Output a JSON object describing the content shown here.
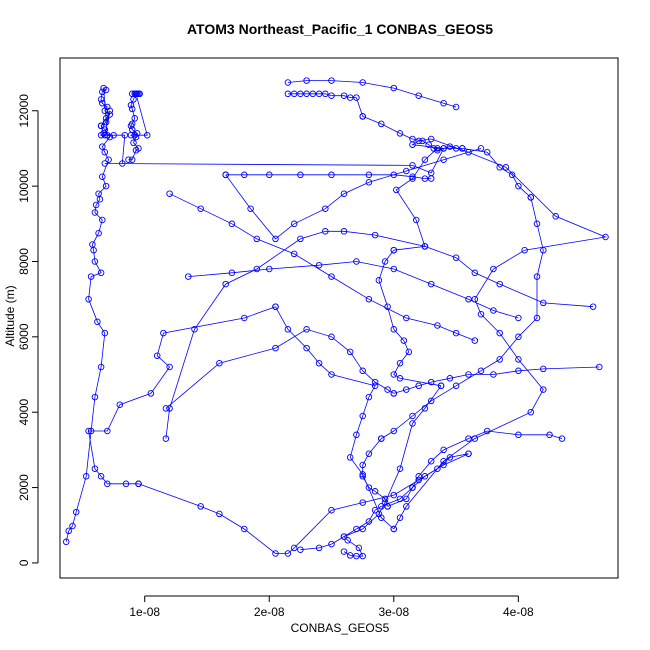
{
  "chart_data": {
    "type": "line",
    "title": "ATOM3 Northeast_Pacific_1 CONBAS_GEOS5",
    "xlabel": "CONBAS_GEOS5",
    "ylabel": "Altitude (m)",
    "xlim": [
      3.2e-09,
      4.8e-08
    ],
    "ylim": [
      -400,
      13400
    ],
    "x_ticks": [
      1e-08,
      2e-08,
      3e-08,
      4e-08
    ],
    "x_tick_labels": [
      "1e-08",
      "2e-08",
      "3e-08",
      "4e-08"
    ],
    "y_ticks": [
      0,
      2000,
      4000,
      6000,
      8000,
      10000,
      12000
    ],
    "y_tick_labels": [
      "0",
      "2000",
      "4000",
      "6000",
      "8000",
      "10000",
      "12000"
    ],
    "line_color": "#0000ff",
    "marker": "open-circle",
    "grid": false,
    "legend": "none",
    "series": [
      {
        "x": [
          3.7e-09,
          3.9e-09,
          4.2e-09,
          4.5e-09,
          5.3e-09,
          5.7e-09,
          6e-09,
          6.5e-09,
          6.8e-09,
          6.2e-09,
          5.5e-09,
          5.7e-09,
          6.5e-09,
          6e-09,
          5.9e-09,
          5.8e-09,
          6.3e-09,
          6.6e-09,
          6e-09,
          6.1e-09,
          6.4e-09,
          6.3e-09,
          6.9e-09,
          6.6e-09,
          7.1e-09,
          6.8e-09,
          6.6e-09,
          7.2e-09,
          6.8e-09,
          6.5e-09,
          6.9e-09,
          7.2e-09,
          6.8e-09,
          7e-09,
          6.6e-09,
          6.5e-09,
          6.6e-09,
          6.9e-09,
          6.7e-09,
          7e-09,
          6.5e-09,
          6.7e-09,
          6.5e-09,
          6.9e-09,
          7.2e-09,
          6.8e-09,
          7.5e-09,
          8.4e-09,
          8.2e-09
        ],
        "y": [
          560,
          850,
          980,
          1350,
          2300,
          3500,
          4400,
          5200,
          6100,
          6400,
          7000,
          7600,
          7700,
          8000,
          8300,
          8450,
          8750,
          9100,
          9300,
          9500,
          9650,
          9800,
          10000,
          10250,
          10700,
          10900,
          11050,
          11300,
          11500,
          11600,
          11800,
          11900,
          12000,
          12100,
          12200,
          12300,
          12500,
          12550,
          12600,
          11350,
          11350,
          11400,
          11600,
          11700,
          12000,
          11350,
          11350,
          11350,
          10600
        ]
      },
      {
        "x": [
          8.7e-09,
          9e-09,
          9.3e-09,
          9.5e-09,
          9.1e-09,
          9.3e-09,
          8.9e-09,
          9.4e-09,
          9e-09,
          8.9e-09,
          9e-09,
          9.2e-09,
          9e-09,
          8.9e-09,
          9.1e-09,
          9.3e-09,
          1.02e-08,
          9.2e-09
        ],
        "y": [
          10700,
          10700,
          10950,
          11000,
          11150,
          11300,
          11350,
          11400,
          11500,
          11600,
          11650,
          11800,
          12050,
          12150,
          12300,
          12450,
          11350,
          11350
        ]
      },
      {
        "x": [
          9.3e-09,
          9.5e-09,
          9.2e-09,
          9e-09,
          9.4e-09,
          9.6e-09
        ],
        "y": [
          12450,
          12450,
          12450,
          12450,
          12450,
          12450
        ]
      },
      {
        "x": [
          6.8e-09,
          3.15e-08,
          3.3e-08,
          3.4e-08,
          3.15e-08,
          3.2e-08,
          3.3e-08,
          3.6e-08,
          3.9e-08,
          4.3e-08,
          4.7e-08,
          4.05e-08,
          3.8e-08,
          3.65e-08,
          3.7e-08,
          3.85e-08,
          4e-08,
          4.2e-08,
          4.1e-08,
          3.65e-08,
          3.4e-08,
          3.1e-08,
          3.05e-08,
          3e-08
        ],
        "y": [
          10600,
          10550,
          10350,
          11000,
          11100,
          11200,
          11250,
          10900,
          10500,
          9200,
          8650,
          8300,
          7800,
          7000,
          6600,
          6100,
          5400,
          4600,
          4000,
          3300,
          2700,
          1500,
          1200,
          900
        ]
      },
      {
        "x": [
          3e-08,
          2.9e-08,
          2.75e-08,
          2.65e-08,
          2.7e-08,
          2.75e-08,
          2.8e-08,
          2.85e-08,
          2.5e-08,
          2.4e-08,
          2.3e-08,
          2.15e-08,
          2.05e-08
        ],
        "y": [
          900,
          1200,
          2350,
          2800,
          3400,
          3900,
          4400,
          4700,
          5000,
          5300,
          5700,
          6200,
          6800
        ]
      },
      {
        "x": [
          2.05e-08,
          1.8e-08,
          1.15e-08,
          1.1e-08,
          1.2e-08,
          1.05e-08,
          8e-09,
          7e-09,
          5.5e-09,
          6e-09,
          6.5e-09,
          7e-09,
          8.5e-09,
          9.5e-09
        ],
        "y": [
          6800,
          6500,
          6100,
          5500,
          5200,
          4500,
          4200,
          3500,
          3500,
          2500,
          2300,
          2100,
          2100,
          2100
        ]
      },
      {
        "x": [
          9.5e-09,
          1.45e-08,
          1.6e-08,
          1.8e-08,
          2.05e-08,
          2.15e-08,
          2.2e-08,
          2.5e-08,
          2.75e-08,
          3e-08,
          3.2e-08,
          3.35e-08,
          3.45e-08,
          3.6e-08
        ],
        "y": [
          2100,
          1500,
          1300,
          900,
          250,
          250,
          400,
          1400,
          1600,
          1800,
          2200,
          2500,
          2800,
          2900
        ]
      },
      {
        "x": [
          3.6e-08,
          3.4e-08,
          3.25e-08,
          3.15e-08,
          3.05e-08,
          2.9e-08,
          2.85e-08,
          2.8e-08,
          2.7e-08,
          2.6e-08,
          2.5e-08,
          2.4e-08,
          2.25e-08
        ],
        "y": [
          2900,
          2600,
          2300,
          2000,
          1700,
          1500,
          1400,
          1100,
          900,
          700,
          500,
          400,
          350
        ]
      },
      {
        "x": [
          2.6e-08,
          2.65e-08,
          2.7e-08,
          2.75e-08,
          2.72e-08,
          2.63e-08,
          2.6e-08,
          2.75e-08,
          2.88e-08,
          2.93e-08,
          3.05e-08,
          3.15e-08,
          3.25e-08,
          3.38e-08
        ],
        "y": [
          300,
          200,
          180,
          180,
          400,
          600,
          700,
          900,
          1300,
          1600,
          2500,
          3700,
          4100,
          4700
        ]
      },
      {
        "x": [
          3.38e-08,
          3.05e-08,
          3e-08,
          3.05e-08,
          3.12e-08,
          3.08e-08,
          3e-08,
          2.95e-08,
          2.88e-08,
          2.93e-08,
          3e-08
        ],
        "y": [
          4700,
          4900,
          5000,
          5300,
          5600,
          5900,
          6200,
          6800,
          7500,
          8000,
          8300
        ]
      },
      {
        "x": [
          3e-08,
          3.25e-08,
          3.18e-08,
          3.02e-08,
          3.15e-08,
          3.25e-08,
          3.35e-08,
          3.55e-08,
          3.75e-08,
          3.85e-08,
          3.95e-08,
          4e-08,
          4.1e-08
        ],
        "y": [
          8300,
          8400,
          9100,
          9900,
          10200,
          10700,
          11000,
          11000,
          10900,
          10500,
          10300,
          10000,
          9700
        ]
      },
      {
        "x": [
          4.1e-08,
          4.15e-08,
          4.2e-08,
          4.15e-08,
          4.15e-08,
          4e-08,
          3.85e-08,
          3.7e-08,
          3.5e-08,
          3.3e-08,
          3.15e-08,
          3e-08,
          2.9e-08
        ],
        "y": [
          9700,
          9000,
          8300,
          7600,
          6500,
          6000,
          5400,
          5100,
          4700,
          4300,
          3900,
          3500,
          3300
        ]
      },
      {
        "x": [
          2.9e-08,
          2.8e-08,
          2.75e-08,
          2.75e-08,
          2.8e-08,
          2.85e-08,
          2.93e-08,
          2.95e-08
        ],
        "y": [
          3300,
          2900,
          2600,
          2300,
          2000,
          1900,
          1700,
          1500
        ]
      },
      {
        "x": [
          2.95e-08,
          3.1e-08,
          3.15e-08,
          3.2e-08,
          3.3e-08,
          3.4e-08,
          3.6e-08,
          3.75e-08,
          4e-08,
          4.25e-08,
          4.35e-08
        ],
        "y": [
          1500,
          1700,
          2000,
          2300,
          2700,
          3000,
          3300,
          3500,
          3400,
          3400,
          3300
        ]
      },
      {
        "x": [
          1.17e-08,
          1.6e-08,
          2.05e-08,
          2.3e-08,
          2.5e-08,
          2.65e-08,
          2.75e-08,
          2.85e-08,
          2.95e-08,
          3e-08
        ],
        "y": [
          4100,
          5300,
          5700,
          6200,
          6000,
          5600,
          5100,
          4800,
          4600,
          4500
        ]
      },
      {
        "x": [
          3e-08,
          3.1e-08,
          3.2e-08,
          3.3e-08,
          3.45e-08,
          3.6e-08,
          3.8e-08,
          4e-08,
          4.2e-08,
          4.65e-08
        ],
        "y": [
          4500,
          4600,
          4700,
          4800,
          4900,
          5000,
          5000,
          5100,
          5150,
          5200
        ]
      },
      {
        "x": [
          1.17e-08,
          1.2e-08,
          1.4e-08,
          1.65e-08,
          1.9e-08,
          2.25e-08,
          2.45e-08,
          2.6e-08,
          2.85e-08,
          3.25e-08,
          3.5e-08,
          3.65e-08,
          3.85e-08,
          4.2e-08,
          4.6e-08
        ],
        "y": [
          3300,
          4100,
          6200,
          7400,
          7800,
          8600,
          8800,
          8800,
          8700,
          8400,
          8100,
          7700,
          7400,
          6900,
          6800
        ]
      },
      {
        "x": [
          1.35e-08,
          1.7e-08,
          2e-08,
          2.4e-08,
          2.7e-08,
          3e-08,
          3.3e-08,
          3.6e-08,
          3.8e-08,
          4e-08
        ],
        "y": [
          7600,
          7700,
          7800,
          7900,
          8000,
          7800,
          7400,
          7000,
          6700,
          6500
        ]
      },
      {
        "x": [
          1.65e-08,
          1.8e-08,
          2e-08,
          2.25e-08,
          2.5e-08,
          2.8e-08,
          3e-08,
          3.15e-08,
          3.25e-08,
          3.3e-08
        ],
        "y": [
          10300,
          10300,
          10300,
          10300,
          10300,
          10300,
          10300,
          10250,
          10200,
          10200
        ]
      },
      {
        "x": [
          1.65e-08,
          1.85e-08,
          2.05e-08,
          2.2e-08,
          2.45e-08,
          2.6e-08,
          2.8e-08,
          3.1e-08,
          3.4e-08,
          3.7e-08
        ],
        "y": [
          10300,
          9400,
          8600,
          9000,
          9400,
          9800,
          10100,
          10400,
          10700,
          11000
        ]
      },
      {
        "x": [
          1.2e-08,
          1.45e-08,
          1.7e-08,
          1.9e-08,
          2.2e-08,
          2.5e-08,
          2.8e-08,
          3.1e-08,
          3.35e-08,
          3.5e-08,
          3.65e-08
        ],
        "y": [
          9800,
          9400,
          9000,
          8600,
          8200,
          7600,
          7000,
          6500,
          6300,
          6100,
          5900
        ]
      },
      {
        "x": [
          2.15e-08,
          2.3e-08,
          2.5e-08,
          2.75e-08,
          3e-08,
          3.2e-08,
          3.4e-08,
          3.5e-08
        ],
        "y": [
          12750,
          12800,
          12800,
          12750,
          12600,
          12400,
          12200,
          12100
        ]
      },
      {
        "x": [
          2.15e-08,
          2.2e-08,
          2.25e-08,
          2.3e-08,
          2.35e-08,
          2.4e-08,
          2.45e-08,
          2.5e-08,
          2.6e-08,
          2.65e-08,
          2.7e-08,
          2.75e-08
        ],
        "y": [
          12450,
          12450,
          12450,
          12450,
          12450,
          12450,
          12450,
          12400,
          12400,
          12350,
          12350,
          11850
        ]
      },
      {
        "x": [
          2.75e-08,
          2.9e-08,
          3.05e-08,
          3.15e-08,
          3.23e-08,
          3.28e-08,
          3.32e-08,
          3.35e-08,
          3.4e-08,
          3.45e-08,
          3.5e-08,
          3.55e-08
        ],
        "y": [
          11850,
          11650,
          11400,
          11250,
          11200,
          11100,
          11000,
          10950,
          11000,
          11050,
          11000,
          11000
        ]
      }
    ]
  }
}
